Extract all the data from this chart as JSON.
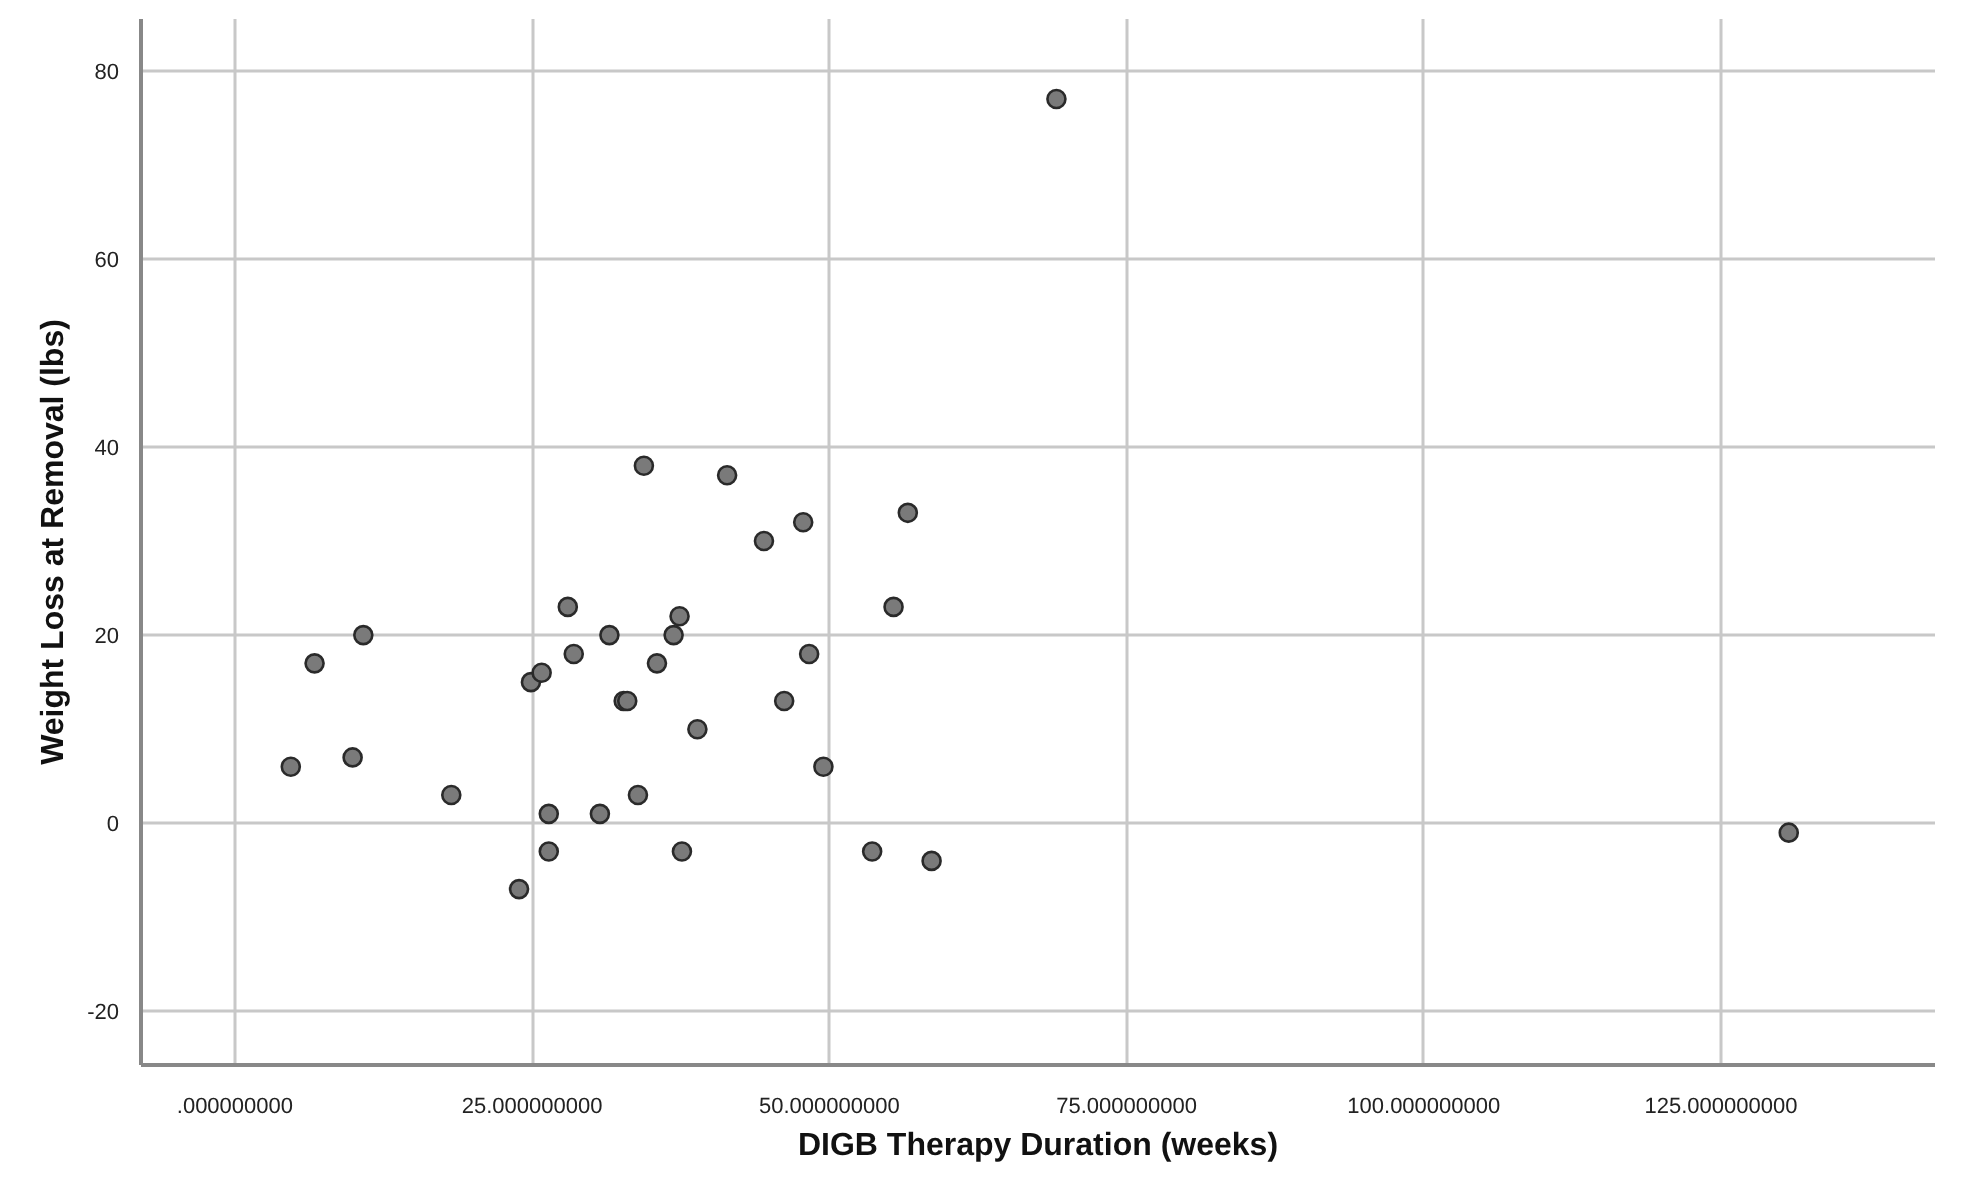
{
  "chart_data": {
    "type": "scatter",
    "xlabel": "DIGB Therapy Duration (weeks)",
    "ylabel": "Weight Loss at Removal (lbs)",
    "x": [
      4.7,
      6.7,
      9.9,
      10.8,
      18.2,
      23.9,
      24.9,
      25.8,
      26.4,
      26.4,
      28.0,
      28.5,
      30.7,
      31.5,
      32.7,
      33.0,
      33.9,
      34.4,
      35.5,
      36.9,
      37.4,
      37.6,
      38.9,
      41.4,
      44.5,
      46.2,
      47.8,
      48.3,
      49.5,
      53.6,
      55.4,
      56.6,
      58.6,
      69.1,
      130.7
    ],
    "series": [
      {
        "color": "#7a7a7a",
        "values": [
          6,
          17,
          7,
          20,
          3,
          -7,
          15,
          16,
          1,
          -3,
          23,
          18,
          1,
          20,
          13,
          13,
          3,
          38,
          17,
          20,
          22,
          -3,
          10,
          37,
          30,
          13,
          32,
          18,
          6,
          -3,
          23,
          33,
          -4,
          77,
          -1
        ]
      }
    ],
    "xlim": [
      -7.9,
      143
    ],
    "ylim": [
      -25.7,
      85.5
    ],
    "xticks": [
      {
        "value": 0,
        "label": ".000000000"
      },
      {
        "value": 25,
        "label": "25.000000000"
      },
      {
        "value": 50,
        "label": "50.000000000"
      },
      {
        "value": 75,
        "label": "75.000000000"
      },
      {
        "value": 100,
        "label": "100.000000000"
      },
      {
        "value": 125,
        "label": "125.000000000"
      }
    ],
    "yticks": [
      -20,
      0,
      20,
      40,
      60,
      80
    ],
    "grid": true,
    "marker": "circle"
  }
}
